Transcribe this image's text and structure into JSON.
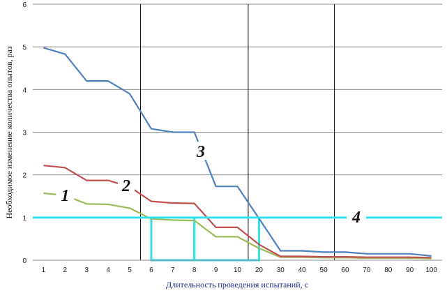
{
  "chart_data": {
    "type": "line",
    "xlabel": "Длительность проведения испытаний, с",
    "ylabel": "Необходимое изменение количества опытов, раз",
    "ylim": [
      0,
      6
    ],
    "yticks": [
      "0",
      "1",
      "2",
      "3",
      "4",
      "5",
      "6"
    ],
    "categories": [
      "1",
      "2",
      "3",
      "4",
      "5",
      "6",
      "7",
      "8",
      "9",
      "10",
      "20",
      "30",
      "40",
      "50",
      "60",
      "70",
      "80",
      "90",
      "100"
    ],
    "grid": "horizontal",
    "vertical_lines_after_categories": [
      "5",
      "10",
      "50"
    ],
    "series": [
      {
        "name": "1",
        "color": "#9bbb59",
        "values": [
          1.57,
          1.52,
          1.32,
          1.31,
          1.22,
          0.97,
          0.94,
          0.93,
          0.55,
          0.55,
          0.28,
          0.07,
          0.07,
          0.06,
          0.06,
          0.05,
          0.05,
          0.05,
          0.04
        ]
      },
      {
        "name": "2",
        "color": "#c0504d",
        "values": [
          2.22,
          2.17,
          1.87,
          1.87,
          1.72,
          1.38,
          1.34,
          1.33,
          0.77,
          0.77,
          0.37,
          0.09,
          0.09,
          0.08,
          0.08,
          0.07,
          0.07,
          0.07,
          0.06
        ]
      },
      {
        "name": "3",
        "color": "#4f81bd",
        "values": [
          4.98,
          4.83,
          4.2,
          4.2,
          3.9,
          3.08,
          3.0,
          3.0,
          1.73,
          1.73,
          0.98,
          0.22,
          0.22,
          0.19,
          0.19,
          0.15,
          0.15,
          0.15,
          0.1
        ]
      }
    ],
    "threshold": {
      "label": "4",
      "value": 1.0,
      "color": "#33e0ee"
    },
    "highlight_boxes": [
      {
        "from_x": "6",
        "to_x": "8",
        "y_top": 1.0
      },
      {
        "from_x": "8",
        "to_x": "20",
        "y_top": 1.0
      }
    ]
  }
}
